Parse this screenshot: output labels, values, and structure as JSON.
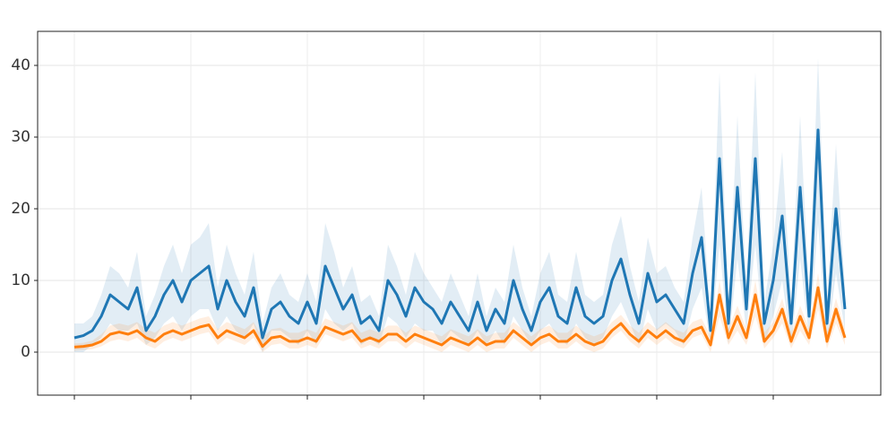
{
  "chart_data": {
    "type": "line",
    "x": [
      0,
      1,
      2,
      3,
      4,
      5,
      6,
      7,
      8,
      9,
      10,
      11,
      12,
      13,
      14,
      15,
      16,
      17,
      18,
      19,
      20,
      21,
      22,
      23,
      24,
      25,
      26,
      27,
      28,
      29,
      30,
      31,
      32,
      33,
      34,
      35,
      36,
      37,
      38,
      39,
      40,
      41,
      42,
      43,
      44,
      45,
      46,
      47,
      48,
      49,
      50,
      51,
      52,
      53,
      54,
      55,
      56,
      57,
      58,
      59,
      60,
      61,
      62,
      63,
      64,
      65,
      66,
      67,
      68,
      69,
      70,
      71,
      72,
      73,
      74,
      75,
      76,
      77,
      78,
      79,
      80,
      81,
      82,
      83,
      84,
      85,
      86
    ],
    "xlim": [
      -4.1,
      90
    ],
    "xticks": [
      0,
      13,
      26,
      39,
      52,
      65,
      78
    ],
    "ylim": [
      -6,
      44.75
    ],
    "yticks": [
      0,
      10,
      20,
      30,
      40
    ],
    "grid": true,
    "series": [
      {
        "color": "#1f77b4",
        "values": [
          2,
          2.3,
          3,
          5,
          8,
          7,
          6,
          9,
          3,
          5,
          8,
          10,
          7,
          10,
          11,
          12,
          6,
          10,
          7,
          5,
          9,
          2,
          6,
          7,
          5,
          4,
          7,
          4,
          12,
          9,
          6,
          8,
          4,
          5,
          3,
          10,
          8,
          5,
          9,
          7,
          6,
          4,
          7,
          5,
          3,
          7,
          3,
          6,
          4,
          10,
          6,
          3,
          7,
          9,
          5,
          4,
          9,
          5,
          4,
          5,
          10,
          13,
          8,
          4,
          11,
          7,
          8,
          6,
          4,
          11,
          16,
          3,
          27,
          4,
          23,
          6,
          27,
          4,
          10,
          19,
          4,
          23,
          5,
          31,
          4,
          20,
          6
        ],
        "lower": [
          0,
          0,
          1,
          2,
          4,
          3,
          3,
          4,
          1,
          2,
          4,
          5,
          3,
          5,
          6,
          6,
          3,
          5,
          3,
          2,
          4,
          0,
          3,
          3,
          2,
          1,
          3,
          1,
          6,
          4,
          3,
          4,
          1,
          2,
          1,
          5,
          4,
          2,
          4,
          3,
          3,
          1,
          3,
          2,
          1,
          3,
          1,
          3,
          1,
          5,
          3,
          1,
          3,
          4,
          2,
          1,
          4,
          2,
          1,
          2,
          5,
          7,
          4,
          1,
          6,
          3,
          4,
          3,
          1,
          6,
          9,
          1,
          15,
          1,
          13,
          3,
          15,
          1,
          5,
          10,
          1,
          13,
          2,
          18,
          1,
          11,
          3
        ],
        "upper": [
          4,
          4,
          5,
          8,
          12,
          11,
          9,
          14,
          5,
          8,
          12,
          15,
          11,
          15,
          16,
          18,
          9,
          15,
          11,
          8,
          14,
          4,
          9,
          11,
          8,
          7,
          11,
          7,
          18,
          14,
          9,
          12,
          7,
          8,
          5,
          15,
          12,
          8,
          14,
          11,
          9,
          7,
          11,
          8,
          5,
          11,
          5,
          9,
          7,
          15,
          9,
          5,
          11,
          14,
          8,
          7,
          14,
          8,
          7,
          8,
          15,
          19,
          12,
          7,
          16,
          11,
          12,
          9,
          7,
          16,
          23,
          5,
          39,
          7,
          33,
          9,
          39,
          7,
          15,
          28,
          7,
          33,
          8,
          41,
          7,
          29,
          9
        ]
      },
      {
        "color": "#ff7f0e",
        "values": [
          0.7,
          0.8,
          1,
          1.5,
          2.5,
          2.8,
          2.5,
          3,
          2,
          1.5,
          2.5,
          3,
          2.5,
          3,
          3.5,
          3.8,
          2,
          3,
          2.5,
          2,
          3,
          0.8,
          2,
          2.2,
          1.5,
          1.5,
          2,
          1.5,
          3.5,
          3,
          2.5,
          3,
          1.5,
          2,
          1.5,
          2.5,
          2.5,
          1.5,
          2.5,
          2,
          1.5,
          1,
          2,
          1.5,
          1,
          2,
          1,
          1.5,
          1.5,
          3,
          2,
          1,
          2,
          2.5,
          1.5,
          1.5,
          2.5,
          1.5,
          1,
          1.5,
          3,
          4,
          2.5,
          1.5,
          3,
          2,
          3,
          2,
          1.5,
          3,
          3.5,
          1,
          8,
          2,
          5,
          2,
          8,
          1.5,
          3,
          6,
          1.5,
          5,
          2,
          9,
          1.5,
          6,
          2
        ],
        "lower": [
          0.2,
          0.3,
          0.4,
          0.8,
          1.5,
          1.8,
          1.5,
          2,
          1,
          0.5,
          1.5,
          2,
          1.5,
          2,
          2.5,
          2.8,
          1,
          2,
          1.5,
          1,
          2,
          0,
          1,
          1.2,
          0.5,
          0.5,
          1,
          0.5,
          2.5,
          2,
          1.5,
          2,
          0.5,
          1,
          0.5,
          1.5,
          1.5,
          0.5,
          1.5,
          1,
          0.5,
          0,
          1,
          0.5,
          0,
          1,
          0,
          0.5,
          0.5,
          2,
          1,
          0,
          1,
          1.5,
          0.5,
          0.5,
          1.5,
          0.5,
          0,
          0.5,
          2,
          3,
          1.5,
          0.5,
          2,
          1,
          2,
          1,
          0.5,
          2,
          2.5,
          0,
          5,
          1,
          3,
          1,
          5,
          0.5,
          2,
          4,
          0.5,
          3,
          1,
          6,
          0.5,
          4,
          1
        ],
        "upper": [
          1.2,
          1.3,
          1.6,
          2.5,
          3.7,
          4,
          3.7,
          4.2,
          3.2,
          2.7,
          3.7,
          4.2,
          3.7,
          4.2,
          4.7,
          5,
          3.2,
          4.2,
          3.7,
          3.2,
          4.2,
          2,
          3.2,
          3.4,
          2.7,
          2.7,
          3.2,
          2.7,
          4.7,
          4.2,
          3.7,
          4.2,
          2.7,
          3.2,
          2.7,
          3.7,
          3.7,
          2.7,
          3.7,
          3.2,
          2.7,
          2.2,
          3.2,
          2.7,
          2.2,
          3.2,
          2.2,
          2.7,
          2.7,
          4.2,
          3.2,
          2.2,
          3.2,
          3.7,
          2.7,
          2.7,
          3.7,
          2.7,
          2.2,
          2.7,
          4.2,
          5.2,
          3.7,
          2.7,
          4.2,
          3.2,
          4.2,
          3.2,
          2.7,
          4.2,
          4.7,
          2.2,
          10,
          3.2,
          6.5,
          3.2,
          10,
          2.7,
          4.2,
          7.5,
          2.7,
          6.5,
          3.2,
          11,
          2.7,
          7.5,
          3.2
        ]
      }
    ]
  }
}
